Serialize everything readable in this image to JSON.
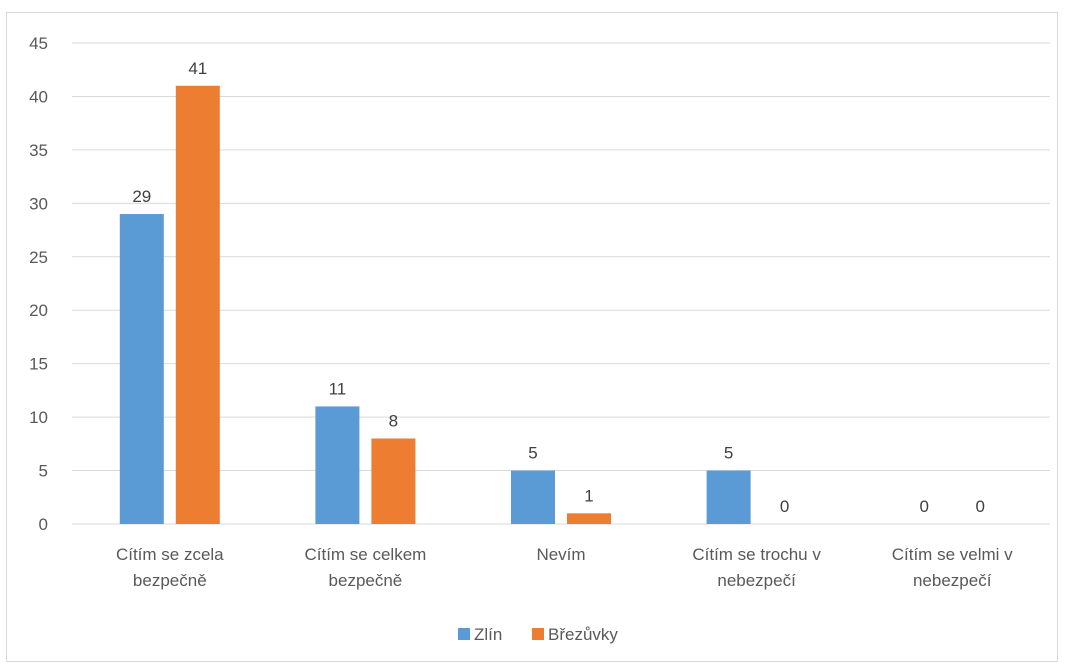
{
  "chart_data": {
    "type": "bar",
    "categories": [
      [
        "Cítím se zcela",
        "bezpečně"
      ],
      [
        "Cítím se celkem",
        "bezpečně"
      ],
      [
        "Nevím"
      ],
      [
        "Cítím se trochu v",
        "nebezpečí"
      ],
      [
        "Cítím se velmi v",
        "nebezpečí"
      ]
    ],
    "series": [
      {
        "name": "Zlín",
        "color": "#5b9bd5",
        "values": [
          29,
          11,
          5,
          5,
          0
        ]
      },
      {
        "name": "Březůvky",
        "color": "#ed7d31",
        "values": [
          41,
          8,
          1,
          0,
          0
        ]
      }
    ],
    "yticks": [
      "0",
      "5",
      "10",
      "15",
      "20",
      "25",
      "30",
      "35",
      "40",
      "45"
    ],
    "ylim": [
      0,
      45
    ],
    "grid": true,
    "legend": "bottom"
  }
}
